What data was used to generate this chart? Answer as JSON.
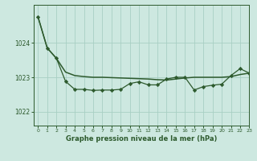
{
  "title": "Graphe pression niveau de la mer (hPa)",
  "bg_color": "#cde8e0",
  "grid_color": "#a8cfc4",
  "line_color": "#2d5a2d",
  "xlim": [
    -0.5,
    23
  ],
  "ylim": [
    1021.6,
    1025.1
  ],
  "yticks": [
    1022,
    1023,
    1024
  ],
  "xticks": [
    0,
    1,
    2,
    3,
    4,
    5,
    6,
    7,
    8,
    9,
    10,
    11,
    12,
    13,
    14,
    15,
    16,
    17,
    18,
    19,
    20,
    21,
    22,
    23
  ],
  "smooth_line_x": [
    0,
    1,
    2,
    3,
    4,
    5,
    6,
    7,
    8,
    9,
    10,
    11,
    12,
    13,
    14,
    15,
    16,
    17,
    18,
    19,
    20,
    21,
    22,
    23
  ],
  "smooth_line_y": [
    1024.75,
    1023.85,
    1023.55,
    1023.15,
    1023.05,
    1023.02,
    1023.0,
    1023.0,
    1022.99,
    1022.98,
    1022.97,
    1022.96,
    1022.95,
    1022.93,
    1022.92,
    1022.95,
    1022.98,
    1023.0,
    1023.0,
    1023.0,
    1023.0,
    1023.02,
    1023.08,
    1023.12
  ],
  "jagged_line_x": [
    0,
    1,
    2,
    3,
    4,
    5,
    6,
    7,
    8,
    9,
    10,
    11,
    12,
    13,
    14,
    15,
    16,
    17,
    18,
    19,
    20,
    21,
    22,
    23
  ],
  "jagged_line_y": [
    1024.75,
    1023.85,
    1023.55,
    1022.88,
    1022.65,
    1022.65,
    1022.62,
    1022.63,
    1022.63,
    1022.65,
    1022.82,
    1022.87,
    1022.78,
    1022.78,
    1022.95,
    1023.0,
    1023.0,
    1022.63,
    1022.73,
    1022.77,
    1022.8,
    1023.05,
    1023.25,
    1023.12
  ]
}
